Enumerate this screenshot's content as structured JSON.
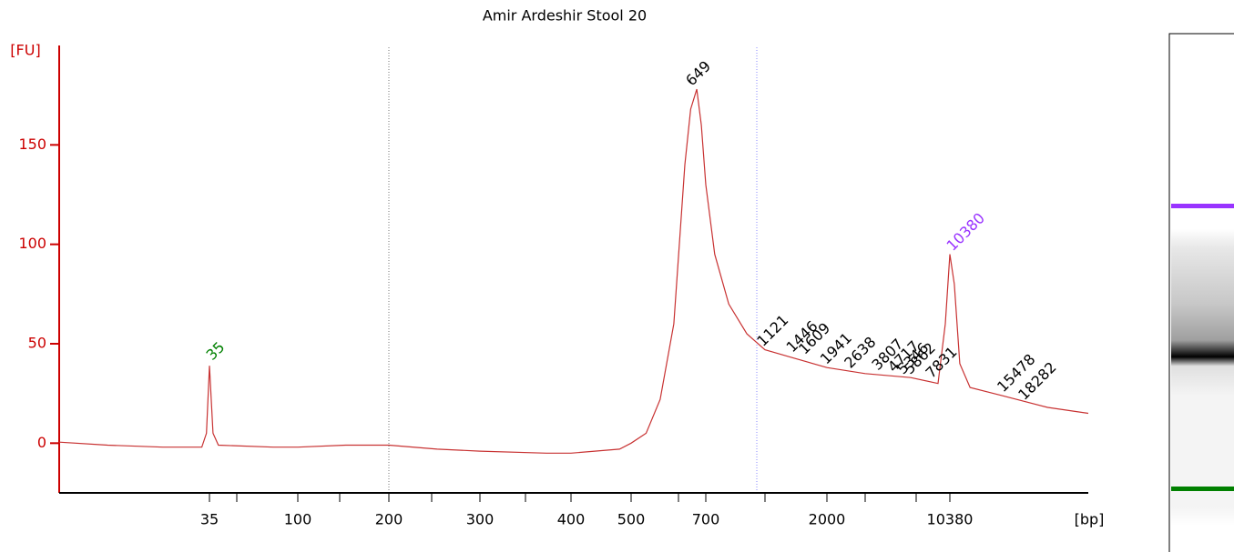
{
  "chart_data": {
    "type": "line",
    "title": "Amir Ardeshir Stool 20",
    "y_label": "[FU]",
    "x_label": "[bp]",
    "xlim": [
      6,
      31000
    ],
    "xticks": [
      35,
      100,
      200,
      300,
      400,
      500,
      700,
      2000,
      10380
    ],
    "ylim": [
      -25,
      200
    ],
    "yticks": [
      0,
      50,
      100,
      150
    ],
    "axis_color": "#cc0000",
    "series": [
      {
        "name": "Amir Ardeshir Stool 20",
        "color": "#c83232",
        "x": [
          6,
          10.6,
          20.3,
          32,
          33.8,
          35,
          36.5,
          38.9,
          74.8,
          100,
          144,
          200,
          248,
          300,
          370,
          400,
          479,
          500,
          535,
          570,
          606,
          637,
          654,
          672,
          686,
          700,
          756,
          854,
          999,
          1168,
          1483,
          2000,
          3338,
          6140,
          8860,
          9770,
          10380,
          10750,
          11230,
          12180,
          15640,
          22480,
          31000
        ],
        "values": [
          0.5,
          -1,
          -2,
          -2,
          5,
          39,
          5,
          -1,
          -2,
          -2,
          -1,
          -1,
          -3,
          -4,
          -5,
          -5,
          -3,
          0,
          5,
          22,
          60,
          140,
          168,
          178,
          160,
          130,
          95,
          70,
          55,
          47,
          43,
          38,
          35,
          33,
          30,
          60,
          95,
          80,
          40,
          28,
          24,
          18,
          15
        ]
      }
    ],
    "peaks": [
      {
        "bp": 35,
        "fu": 40,
        "color": "#008000"
      },
      {
        "bp": 649,
        "fu": 178,
        "color": "#000000"
      },
      {
        "bp": 1121,
        "fu": 47,
        "color": "#000000"
      },
      {
        "bp": 1446,
        "fu": 44,
        "color": "#000000"
      },
      {
        "bp": 1609,
        "fu": 43,
        "color": "#000000"
      },
      {
        "bp": 1941,
        "fu": 38,
        "color": "#000000"
      },
      {
        "bp": 2638,
        "fu": 36,
        "color": "#000000"
      },
      {
        "bp": 3807,
        "fu": 35,
        "color": "#000000"
      },
      {
        "bp": 4717,
        "fu": 34,
        "color": "#000000"
      },
      {
        "bp": 5346,
        "fu": 33,
        "color": "#000000"
      },
      {
        "bp": 5862,
        "fu": 33,
        "color": "#000000"
      },
      {
        "bp": 7831,
        "fu": 31,
        "color": "#000000"
      },
      {
        "bp": 10380,
        "fu": 95,
        "color": "#9933ff"
      },
      {
        "bp": 15478,
        "fu": 24,
        "color": "#000000"
      },
      {
        "bp": 18282,
        "fu": 20,
        "color": "#000000"
      }
    ]
  }
}
